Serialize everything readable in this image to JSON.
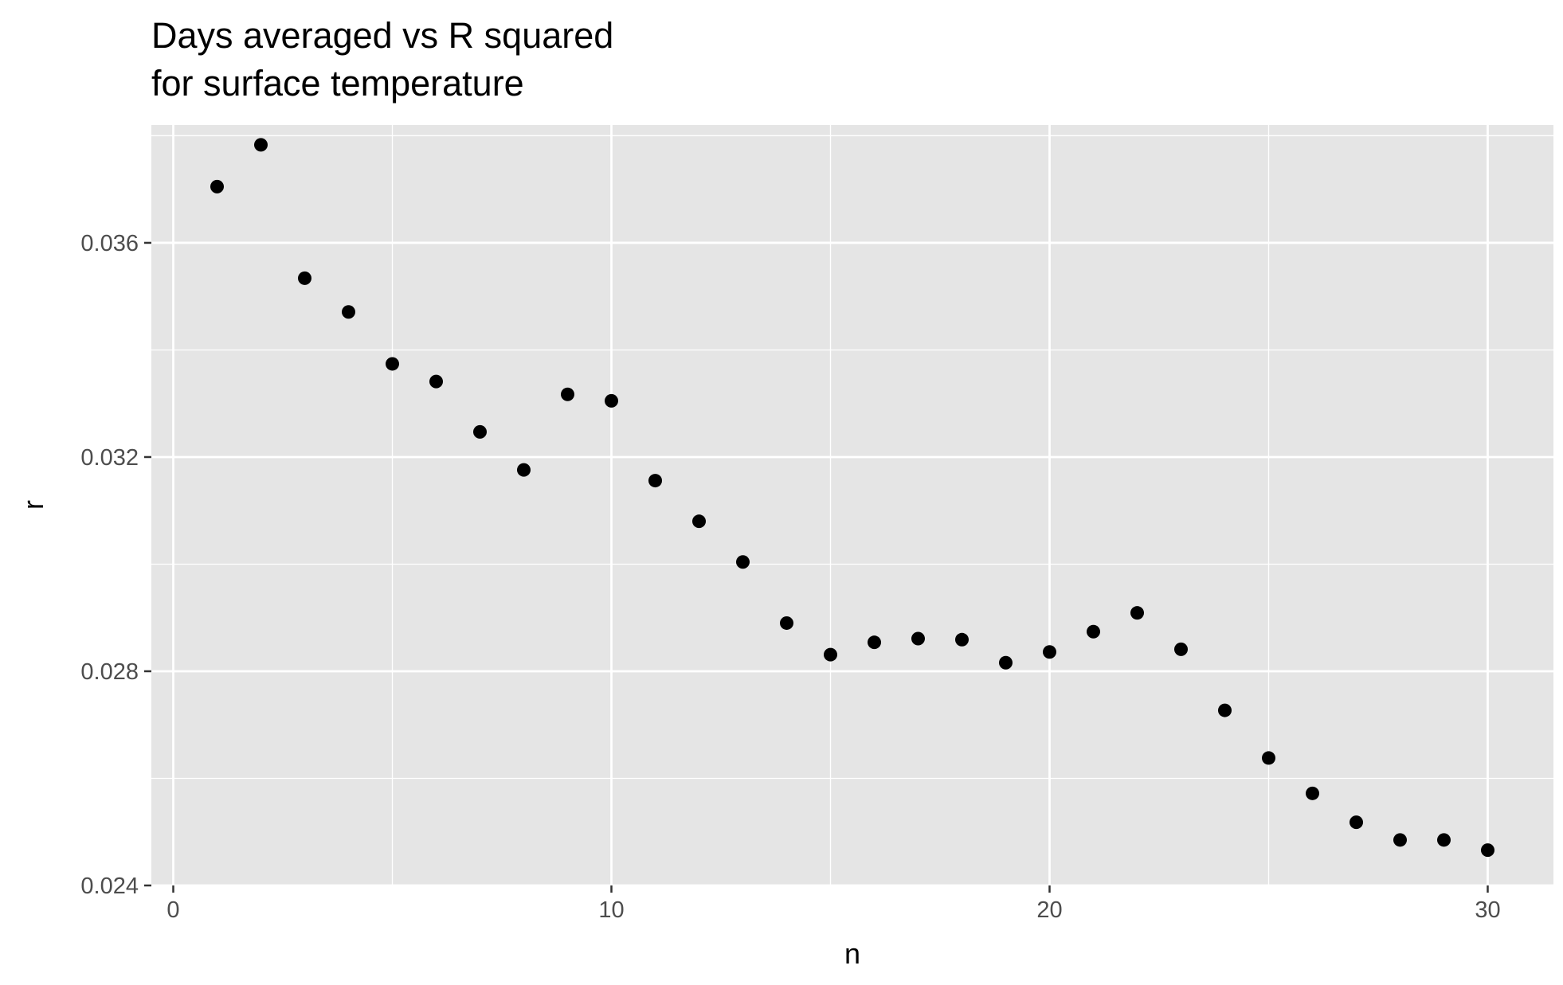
{
  "chart_data": {
    "type": "scatter",
    "title": "Days averaged vs R squared\nfor surface temperature",
    "title_lines": [
      "Days averaged vs R squared",
      "for surface temperature"
    ],
    "xlabel": "n",
    "ylabel": "r",
    "xlim": [
      -0.5,
      31.5
    ],
    "ylim": [
      0.024,
      0.0382
    ],
    "x_ticks": [
      0,
      10,
      20,
      30
    ],
    "x_tick_labels": [
      "0",
      "10",
      "20",
      "30"
    ],
    "y_ticks": [
      0.024,
      0.028,
      0.032,
      0.036
    ],
    "y_tick_labels": [
      "0.024",
      "0.028",
      "0.032",
      "0.036"
    ],
    "grid": true,
    "legend": "none",
    "point_color": "#000000",
    "panel_color": "#e5e5e5",
    "grid_color": "#ffffff",
    "series": [
      {
        "x": [
          1,
          2,
          3,
          4,
          5,
          6,
          7,
          8,
          9,
          10,
          11,
          12,
          13,
          14,
          15,
          16,
          17,
          18,
          19,
          20,
          21,
          22,
          23,
          24,
          25,
          26,
          27,
          28,
          29,
          30
        ],
        "y": [
          0.03705,
          0.03783,
          0.03534,
          0.03471,
          0.03374,
          0.03341,
          0.03247,
          0.03176,
          0.03317,
          0.03305,
          0.03156,
          0.0308,
          0.03004,
          0.0289,
          0.02831,
          0.02854,
          0.02861,
          0.02859,
          0.02816,
          0.02836,
          0.02874,
          0.02909,
          0.02841,
          0.02727,
          0.02638,
          0.02572,
          0.02518,
          0.02485,
          0.02485,
          0.02466
        ]
      }
    ]
  }
}
